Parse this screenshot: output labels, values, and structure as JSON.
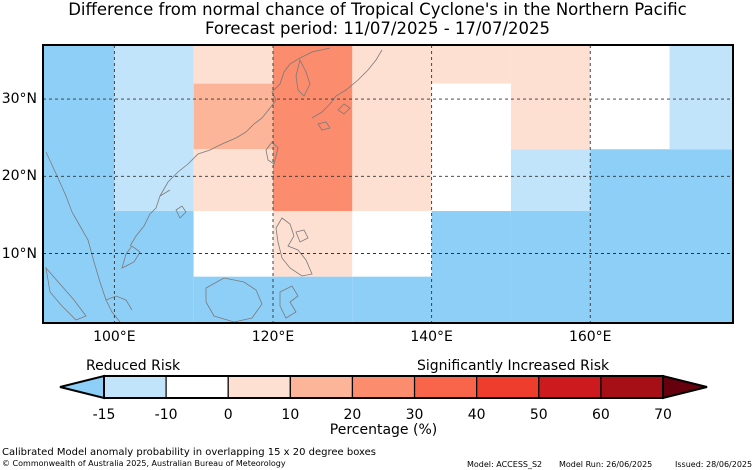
{
  "title": {
    "line1": "Difference from normal chance of Tropical Cyclone's in the Northern Pacific",
    "line2": "Forecast period: 11/07/2025 - 17/07/2025"
  },
  "map": {
    "lon_range": [
      91,
      178
    ],
    "lat_range": [
      1,
      37
    ],
    "lon_ticks": [
      {
        "value": 100,
        "label": "100°E"
      },
      {
        "value": 120,
        "label": "120°E"
      },
      {
        "value": 140,
        "label": "140°E"
      },
      {
        "value": 160,
        "label": "160°E"
      }
    ],
    "lat_ticks": [
      {
        "value": 30,
        "label": "30°N"
      },
      {
        "value": 20,
        "label": "20°N"
      },
      {
        "value": 10,
        "label": "10°N"
      }
    ],
    "gridlines": true,
    "cells": [
      {
        "lon": [
          91,
          100
        ],
        "lat": [
          1,
          37
        ],
        "pct": -20
      },
      {
        "lon": [
          100,
          110
        ],
        "lat": [
          15.5,
          37
        ],
        "pct": -10
      },
      {
        "lon": [
          100,
          110
        ],
        "lat": [
          1,
          15.5
        ],
        "pct": -20
      },
      {
        "lon": [
          110,
          120
        ],
        "lat": [
          32,
          37
        ],
        "pct": 5
      },
      {
        "lon": [
          110,
          120
        ],
        "lat": [
          23.5,
          32
        ],
        "pct": 15
      },
      {
        "lon": [
          110,
          120
        ],
        "lat": [
          15.5,
          23.5
        ],
        "pct": 5
      },
      {
        "lon": [
          110,
          120
        ],
        "lat": [
          7,
          15.5
        ],
        "pct": 0
      },
      {
        "lon": [
          110,
          120
        ],
        "lat": [
          1,
          7
        ],
        "pct": -20
      },
      {
        "lon": [
          120,
          130
        ],
        "lat": [
          15.5,
          37
        ],
        "pct": 25
      },
      {
        "lon": [
          120,
          130
        ],
        "lat": [
          7,
          15.5
        ],
        "pct": 5
      },
      {
        "lon": [
          120,
          130
        ],
        "lat": [
          1,
          7
        ],
        "pct": -20
      },
      {
        "lon": [
          130,
          140
        ],
        "lat": [
          15.5,
          37
        ],
        "pct": 5
      },
      {
        "lon": [
          130,
          140
        ],
        "lat": [
          7,
          15.5
        ],
        "pct": 0
      },
      {
        "lon": [
          130,
          140
        ],
        "lat": [
          1,
          7
        ],
        "pct": -20
      },
      {
        "lon": [
          140,
          150
        ],
        "lat": [
          32,
          37
        ],
        "pct": 5
      },
      {
        "lon": [
          140,
          150
        ],
        "lat": [
          15.5,
          32
        ],
        "pct": 0
      },
      {
        "lon": [
          140,
          150
        ],
        "lat": [
          1,
          15.5
        ],
        "pct": -20
      },
      {
        "lon": [
          150,
          160
        ],
        "lat": [
          23.5,
          37
        ],
        "pct": 5
      },
      {
        "lon": [
          150,
          160
        ],
        "lat": [
          15.5,
          23.5
        ],
        "pct": -10
      },
      {
        "lon": [
          150,
          160
        ],
        "lat": [
          1,
          15.5
        ],
        "pct": -20
      },
      {
        "lon": [
          160,
          170
        ],
        "lat": [
          23.5,
          37
        ],
        "pct": 0
      },
      {
        "lon": [
          160,
          178
        ],
        "lat": [
          1,
          23.5
        ],
        "pct": -20
      },
      {
        "lon": [
          170,
          178
        ],
        "lat": [
          23.5,
          37
        ],
        "pct": -10
      }
    ]
  },
  "colorbar": {
    "label_left": "Reduced Risk",
    "label_right": "Significantly Increased Risk",
    "xlabel": "Percentage (%)",
    "ticks": [
      "-15",
      "-10",
      "0",
      "10",
      "20",
      "30",
      "40",
      "50",
      "60",
      "70"
    ],
    "colors": [
      "#c2e4fb",
      "#ffffff",
      "#fee0d2",
      "#fcb598",
      "#fb8c6e",
      "#f8654a",
      "#ee3c2d",
      "#cc1a1f",
      "#a50f15"
    ],
    "under_color": "#8ecff8",
    "over_color": "#67000d"
  },
  "colors": {
    "reduced_strong": "#8ecff8",
    "reduced_light": "#c2e4fb",
    "neutral": "#ffffff",
    "plus_0_10": "#fee0d2",
    "plus_10_20": "#fcb598",
    "plus_20_30": "#fb8c6e",
    "coast": "#7a7a7a"
  },
  "footer": {
    "caption": "Calibrated Model anomaly probability in overlapping 15 x 20 degree boxes",
    "copyright": "© Commonwealth of Australia 2025, Australian Bureau of Meteorology",
    "model": "Model: ACCESS_S2",
    "model_run": "Model Run: 26/06/2025",
    "issued": "Issued: 28/06/2025"
  }
}
